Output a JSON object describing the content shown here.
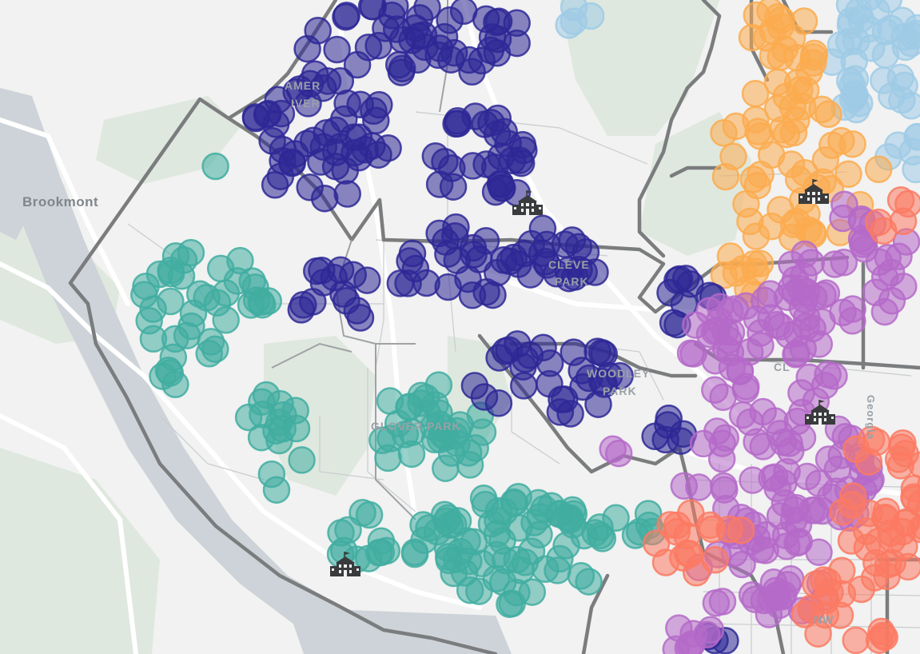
{
  "map": {
    "labels": {
      "brookmont": "Brookmont",
      "american_u_line1": "AMER",
      "american_u_line2": "IVER",
      "cleveland_line1": "CLEVE",
      "cleveland_line2": "PARK",
      "woodley_line1": "WOODLEY",
      "woodley_line2": "PARK",
      "glover": "GLOVER PARK",
      "cleveland_b": "CL",
      "nw": "NW",
      "georgia": "Georgia"
    },
    "school_icon": "school-building-icon",
    "colors": {
      "land": "#f1f2f1",
      "park": "#dfe8df",
      "water": "#cdd3d8",
      "road": "#ffffff",
      "street": "#c9cccf",
      "boundary": "#7a7c7e",
      "zone_purple_navy": "#2e2896",
      "zone_teal": "#41ada1",
      "zone_orange": "#fbab4f",
      "zone_light_blue": "#9fcbe6",
      "zone_violet": "#b56ac9",
      "zone_coral": "#fb7a63"
    }
  }
}
